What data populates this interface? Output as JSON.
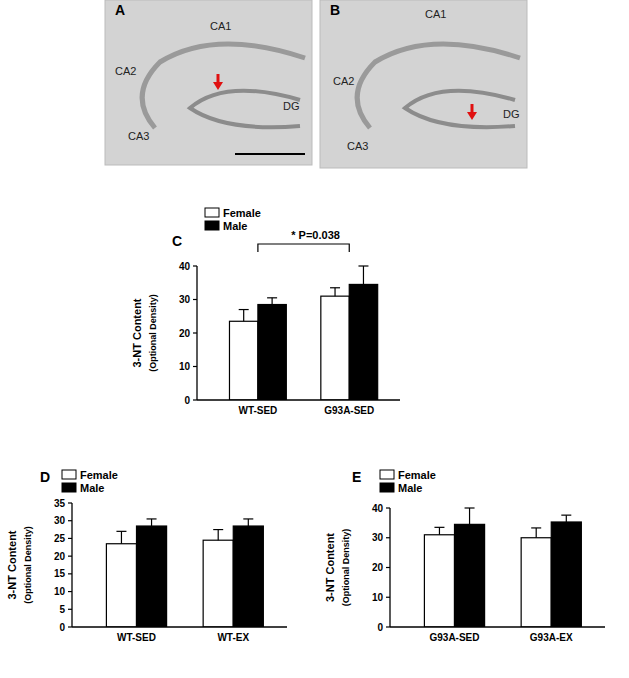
{
  "images": [
    {
      "panel": "A",
      "regions": [
        "CA1",
        "CA2",
        "CA3",
        "DG"
      ]
    },
    {
      "panel": "B",
      "regions": [
        "CA1",
        "CA2",
        "CA3",
        "DG"
      ]
    }
  ],
  "chart_data": [
    {
      "type": "bar",
      "panel": "C",
      "ylabel": [
        "3-NT Content",
        "(Optional Density)"
      ],
      "categories": [
        "WT-SED",
        "G93A-SED"
      ],
      "series": [
        {
          "name": "Female",
          "color": "#ffffff",
          "values": [
            23.5,
            31
          ],
          "errors": [
            3.5,
            2.5
          ]
        },
        {
          "name": "Male",
          "color": "#000000",
          "values": [
            28.5,
            34.5
          ],
          "errors": [
            2,
            5.5
          ]
        }
      ],
      "ylim": [
        0,
        40
      ],
      "yticks": [
        0,
        10,
        20,
        30,
        40
      ],
      "legend": "upper-left",
      "annotation": "* P=0.038"
    },
    {
      "type": "bar",
      "panel": "D",
      "ylabel": [
        "3-NT Content",
        "(Optional Density)"
      ],
      "categories": [
        "WT-SED",
        "WT-EX"
      ],
      "series": [
        {
          "name": "Female",
          "color": "#ffffff",
          "values": [
            23.5,
            24.5
          ],
          "errors": [
            3.5,
            3
          ]
        },
        {
          "name": "Male",
          "color": "#000000",
          "values": [
            28.5,
            28.5
          ],
          "errors": [
            2,
            2
          ]
        }
      ],
      "ylim": [
        0,
        35
      ],
      "yticks": [
        0,
        5,
        10,
        15,
        20,
        25,
        30,
        35
      ],
      "legend": "upper-left"
    },
    {
      "type": "bar",
      "panel": "E",
      "ylabel": [
        "3-NT Content",
        "(Optional Density)"
      ],
      "categories": [
        "G93A-SED",
        "G93A-EX"
      ],
      "series": [
        {
          "name": "Female",
          "color": "#ffffff",
          "values": [
            31,
            30
          ],
          "errors": [
            2.5,
            3.3
          ]
        },
        {
          "name": "Male",
          "color": "#000000",
          "values": [
            34.5,
            35.3
          ],
          "errors": [
            5.5,
            2.3
          ]
        }
      ],
      "ylim": [
        0,
        40
      ],
      "yticks": [
        0,
        10,
        20,
        30,
        40
      ],
      "legend": "upper-left"
    }
  ]
}
